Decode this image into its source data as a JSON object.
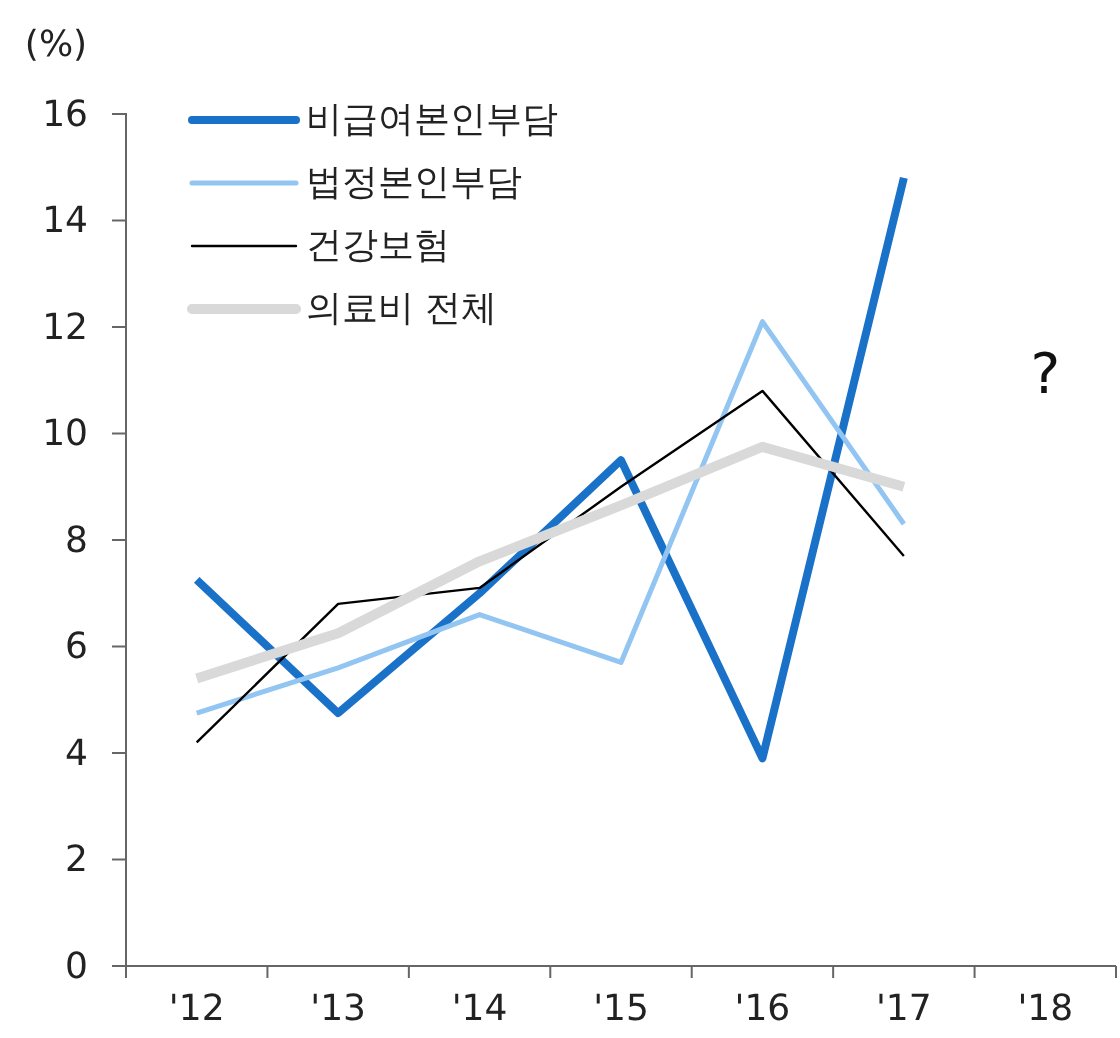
{
  "chart_data": {
    "type": "line",
    "ylabel": "(%)",
    "categories": [
      "'12",
      "'13",
      "'14",
      "'15",
      "'16",
      "'17",
      "'18"
    ],
    "series": [
      {
        "name": "비급여본인부담",
        "color": "#1a72c8",
        "values": [
          7.25,
          4.75,
          7.0,
          9.5,
          3.9,
          14.8,
          null
        ]
      },
      {
        "name": "법정본인부담",
        "color": "#92c5f1",
        "values": [
          4.75,
          5.6,
          6.6,
          5.7,
          12.1,
          8.3,
          null
        ]
      },
      {
        "name": "건강보험",
        "color": "#000000",
        "values": [
          4.2,
          6.8,
          7.1,
          9.0,
          10.8,
          7.7,
          null
        ]
      },
      {
        "name": "의료비 전체",
        "color": "#d9d9d9",
        "values": [
          5.4,
          6.25,
          7.6,
          8.65,
          9.75,
          9.0,
          null
        ]
      }
    ],
    "ylim": [
      0,
      16
    ],
    "yticks": [
      0,
      2,
      4,
      6,
      8,
      10,
      12,
      14,
      16
    ],
    "annotations": [
      "?"
    ],
    "legend": "top left",
    "grid": false,
    "marker": "none",
    "line_style": "solid"
  }
}
